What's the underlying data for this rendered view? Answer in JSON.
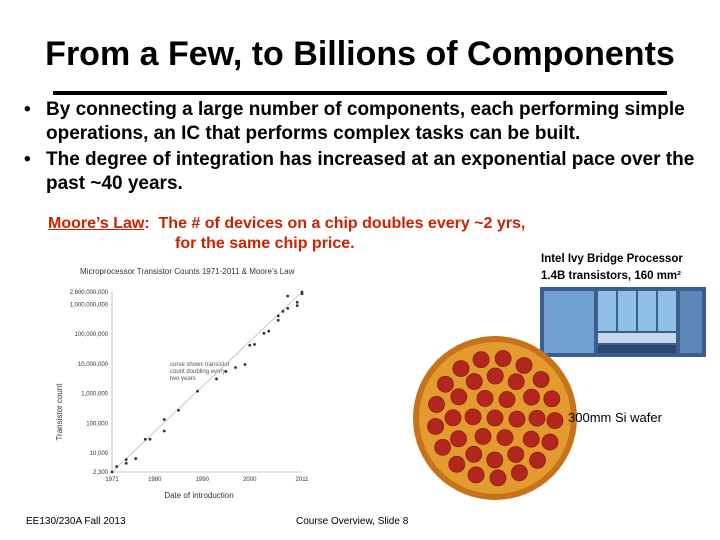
{
  "slide": {
    "title": "From a Few, to Billions of Components",
    "bullets": [
      "By connecting a large number of components, each performing simple operations, an IC that performs complex tasks can be built.",
      "The degree of integration has increased at an exponential pace over the past ~40 years."
    ],
    "moore": {
      "link": "Moore’s Law",
      "colon": ":",
      "line1": "The # of devices on a chip  doubles every ~2 yrs,",
      "line2": "for the same chip price."
    },
    "ivy": {
      "line1": "Intel Ivy Bridge Processor",
      "line2": "1.4B transistors, 160 mm²"
    },
    "wafer_label": "300mm Si wafer",
    "footer_left": "EE130/230A Fall 2013",
    "footer_mid": "Course Overview, Slide 8"
  },
  "chart_data": {
    "type": "scatter",
    "title": "Microprocessor Transistor Counts 1971-2011 & Moore’s Law",
    "xlabel": "Date of introduction",
    "ylabel": "Transistor count",
    "yscale": "log",
    "xlim": [
      1971,
      2011
    ],
    "ylim": [
      2300,
      2600000000
    ],
    "x_ticks": [
      "1971",
      "1980",
      "1990",
      "2000",
      "2011"
    ],
    "y_ticks": [
      "2,600,000,000",
      "1,000,000,000",
      "100,000,000",
      "10,000,000",
      "1,000,000",
      "100,000",
      "10,000",
      "2,300"
    ],
    "annotation": "curve shows transistor count doubling every two years",
    "points": [
      [
        1971,
        2300
      ],
      [
        1972,
        3500
      ],
      [
        1974,
        4500
      ],
      [
        1974,
        6000
      ],
      [
        1976,
        6500
      ],
      [
        1978,
        29000
      ],
      [
        1979,
        29000
      ],
      [
        1982,
        134000
      ],
      [
        1982,
        55000
      ],
      [
        1985,
        275000
      ],
      [
        1989,
        1200000
      ],
      [
        1993,
        3100000
      ],
      [
        1995,
        5500000
      ],
      [
        1997,
        7500000
      ],
      [
        1999,
        9500000
      ],
      [
        2000,
        42000000
      ],
      [
        2001,
        45000000
      ],
      [
        2003,
        105900000
      ],
      [
        2004,
        125000000
      ],
      [
        2006,
        291000000
      ],
      [
        2007,
        582000000
      ],
      [
        2008,
        731000000
      ],
      [
        2010,
        1170000000
      ],
      [
        2011,
        2270000000
      ],
      [
        2011,
        2600000000
      ],
      [
        2008,
        1900000000
      ],
      [
        2010,
        904000000
      ],
      [
        2006,
        410000000
      ]
    ],
    "trend": [
      [
        1971,
        2300
      ],
      [
        2011,
        2600000000
      ]
    ]
  }
}
